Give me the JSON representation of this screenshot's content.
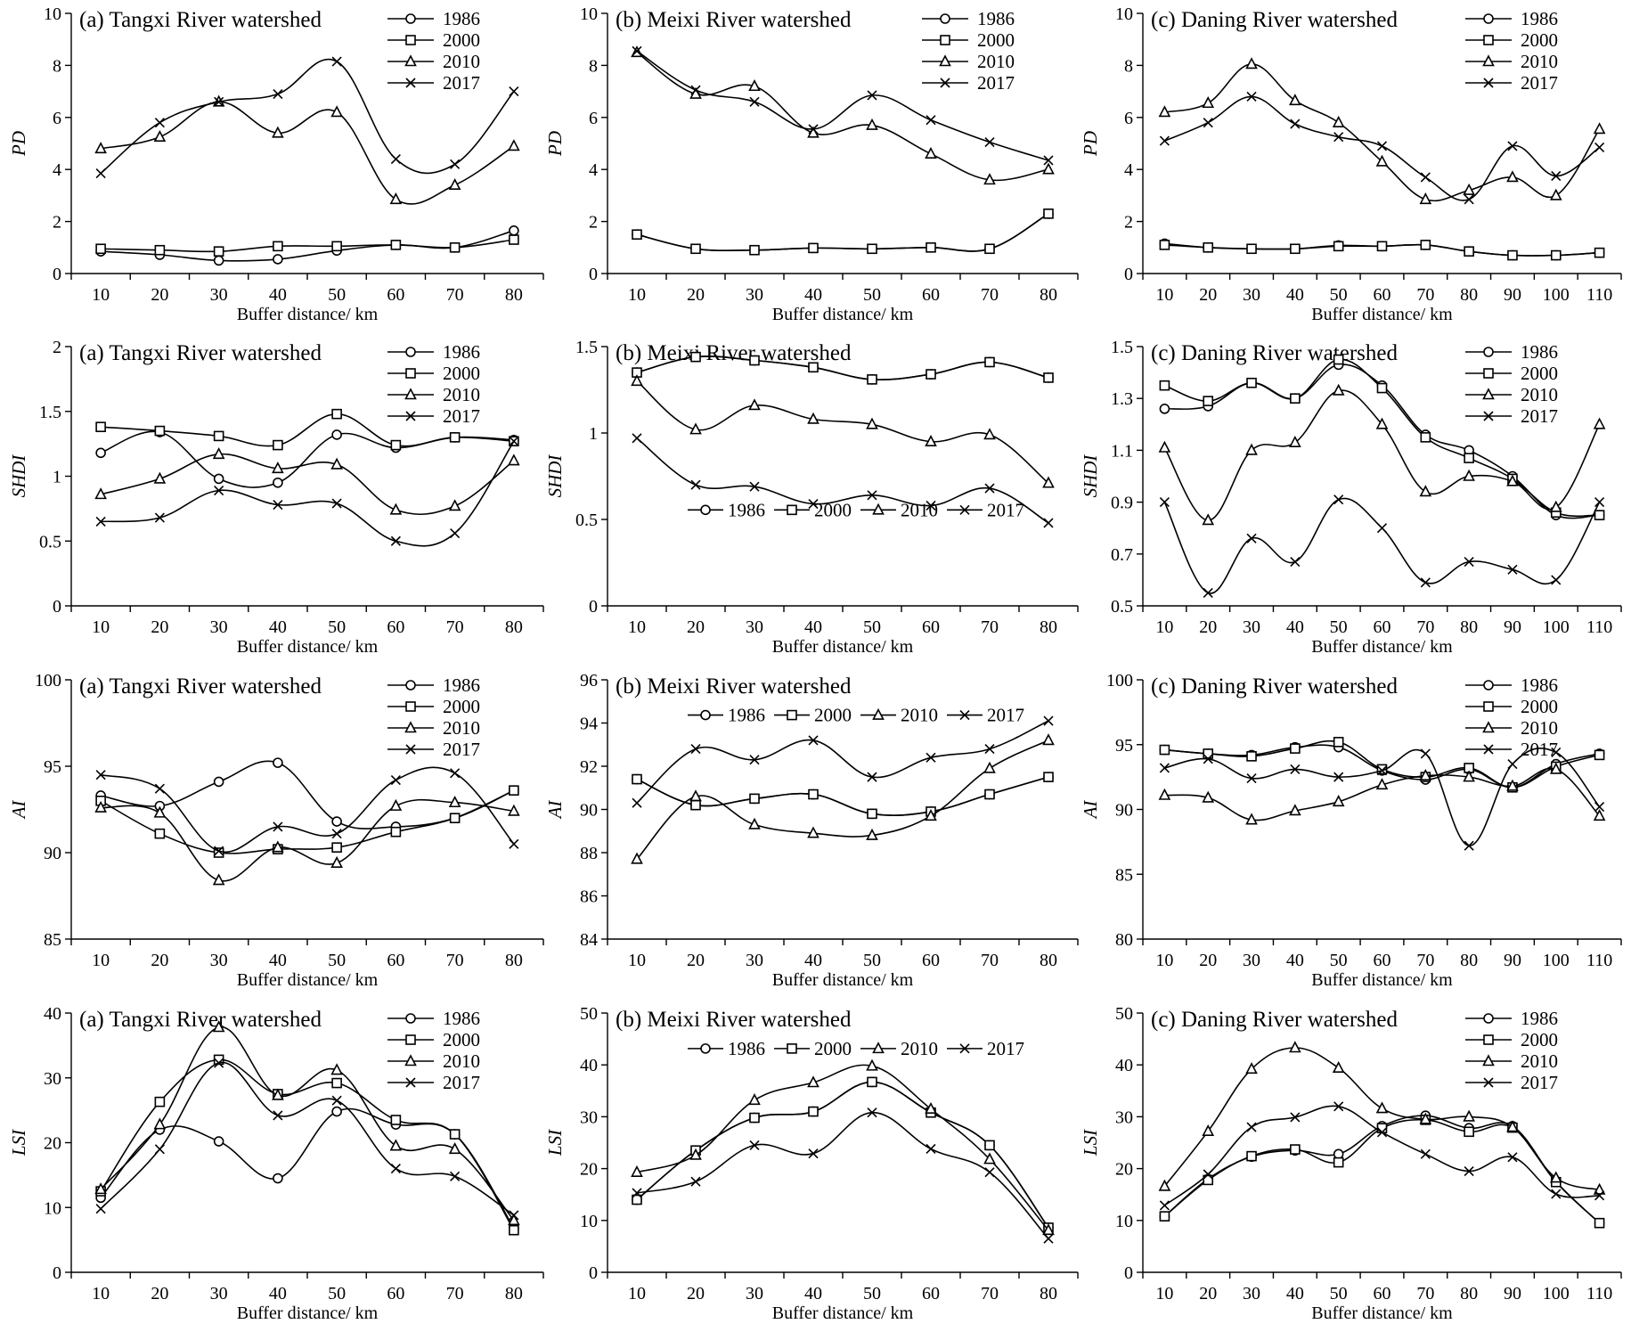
{
  "chart_data": [
    {
      "type": "line",
      "metric": "PD",
      "title": "(a) Tangxi River watershed",
      "xlabel": "Buffer distance/ km",
      "ylabel": "PD",
      "x": [
        10,
        20,
        30,
        40,
        50,
        60,
        70,
        80
      ],
      "ylim": [
        0,
        10
      ],
      "yticks": [
        0,
        2,
        4,
        6,
        8,
        10
      ],
      "legend_position": "top-right",
      "series": [
        {
          "name": "1986",
          "marker": "circle",
          "values": [
            0.85,
            0.72,
            0.5,
            0.55,
            0.88,
            1.1,
            1.0,
            1.65
          ]
        },
        {
          "name": "2000",
          "marker": "square",
          "values": [
            0.95,
            0.9,
            0.85,
            1.05,
            1.05,
            1.1,
            1.0,
            1.3
          ]
        },
        {
          "name": "2010",
          "marker": "triangle",
          "values": [
            4.8,
            5.25,
            6.6,
            5.4,
            6.2,
            2.85,
            3.4,
            4.9
          ]
        },
        {
          "name": "2017",
          "marker": "cross",
          "values": [
            3.85,
            5.8,
            6.6,
            6.9,
            8.15,
            4.4,
            4.2,
            7.0
          ]
        }
      ]
    },
    {
      "type": "line",
      "metric": "PD",
      "title": "(b) Meixi River watershed",
      "xlabel": "Buffer distance/ km",
      "ylabel": "PD",
      "x": [
        10,
        20,
        30,
        40,
        50,
        60,
        70,
        80
      ],
      "ylim": [
        0,
        10
      ],
      "yticks": [
        0,
        2,
        4,
        6,
        8,
        10
      ],
      "legend_position": "top-right",
      "series": [
        {
          "name": "1986",
          "marker": "circle",
          "values": [
            1.5,
            0.95,
            0.9,
            0.98,
            0.95,
            1.0,
            0.95,
            2.3
          ]
        },
        {
          "name": "2000",
          "marker": "square",
          "values": [
            1.5,
            0.95,
            0.9,
            0.98,
            0.95,
            1.0,
            0.95,
            2.3
          ]
        },
        {
          "name": "2010",
          "marker": "triangle",
          "values": [
            8.5,
            6.9,
            7.2,
            5.4,
            5.7,
            4.6,
            3.6,
            4.0
          ]
        },
        {
          "name": "2017",
          "marker": "cross",
          "values": [
            8.55,
            7.05,
            6.6,
            5.55,
            6.85,
            5.9,
            5.05,
            4.35
          ]
        }
      ]
    },
    {
      "type": "line",
      "metric": "PD",
      "title": "(c) Daning River watershed",
      "xlabel": "Buffer distance/ km",
      "ylabel": "PD",
      "x": [
        10,
        20,
        30,
        40,
        50,
        60,
        70,
        80,
        90,
        100,
        110
      ],
      "ylim": [
        0,
        10
      ],
      "yticks": [
        0,
        2,
        4,
        6,
        8,
        10
      ],
      "legend_position": "top-right",
      "series": [
        {
          "name": "1986",
          "marker": "circle",
          "values": [
            1.15,
            1.0,
            0.95,
            0.95,
            1.08,
            1.05,
            1.1,
            0.85,
            0.7,
            0.7,
            0.8
          ]
        },
        {
          "name": "2000",
          "marker": "square",
          "values": [
            1.1,
            1.0,
            0.95,
            0.95,
            1.05,
            1.05,
            1.1,
            0.85,
            0.7,
            0.7,
            0.8
          ]
        },
        {
          "name": "2010",
          "marker": "triangle",
          "values": [
            6.2,
            6.55,
            8.05,
            6.65,
            5.8,
            4.3,
            2.85,
            3.2,
            3.7,
            3.0,
            5.55
          ]
        },
        {
          "name": "2017",
          "marker": "cross",
          "values": [
            5.1,
            5.8,
            6.8,
            5.75,
            5.25,
            4.9,
            3.7,
            2.85,
            4.9,
            3.75,
            4.85
          ]
        }
      ]
    },
    {
      "type": "line",
      "metric": "SHDI",
      "title": "(a) Tangxi River watershed",
      "xlabel": "Buffer distance/ km",
      "ylabel": "SHDI",
      "x": [
        10,
        20,
        30,
        40,
        50,
        60,
        70,
        80
      ],
      "ylim": [
        0,
        2
      ],
      "yticks": [
        0,
        0.5,
        1,
        1.5,
        2
      ],
      "legend_position": "top-right",
      "series": [
        {
          "name": "1986",
          "marker": "circle",
          "values": [
            1.18,
            1.34,
            0.98,
            0.95,
            1.32,
            1.22,
            1.3,
            1.28
          ]
        },
        {
          "name": "2000",
          "marker": "square",
          "values": [
            1.38,
            1.35,
            1.31,
            1.24,
            1.48,
            1.24,
            1.3,
            1.27
          ]
        },
        {
          "name": "2010",
          "marker": "triangle",
          "values": [
            0.86,
            0.98,
            1.17,
            1.06,
            1.09,
            0.74,
            0.77,
            1.12
          ]
        },
        {
          "name": "2017",
          "marker": "cross",
          "values": [
            0.65,
            0.68,
            0.89,
            0.78,
            0.79,
            0.5,
            0.56,
            1.27
          ]
        }
      ]
    },
    {
      "type": "line",
      "metric": "SHDI",
      "title": "(b) Meixi River watershed",
      "xlabel": "Buffer distance/ km",
      "ylabel": "SHDI",
      "x": [
        10,
        20,
        30,
        40,
        50,
        60,
        70,
        80
      ],
      "ylim": [
        0,
        1.5
      ],
      "yticks": [
        0,
        0.5,
        1,
        1.5
      ],
      "legend_position": "center, horizontal",
      "series": [
        {
          "name": "1986",
          "marker": "circle",
          "values": [
            1.35,
            1.44,
            1.42,
            1.38,
            1.31,
            1.34,
            1.41,
            1.32
          ]
        },
        {
          "name": "2000",
          "marker": "square",
          "values": [
            1.35,
            1.44,
            1.42,
            1.38,
            1.31,
            1.34,
            1.41,
            1.32
          ]
        },
        {
          "name": "2010",
          "marker": "triangle",
          "values": [
            1.3,
            1.02,
            1.16,
            1.08,
            1.05,
            0.95,
            0.99,
            0.71
          ]
        },
        {
          "name": "2017",
          "marker": "cross",
          "values": [
            0.97,
            0.7,
            0.69,
            0.59,
            0.64,
            0.58,
            0.68,
            0.48
          ]
        }
      ]
    },
    {
      "type": "line",
      "metric": "SHDI",
      "title": "(c) Daning River watershed",
      "xlabel": "Buffer distance/ km",
      "ylabel": "SHDI",
      "x": [
        10,
        20,
        30,
        40,
        50,
        60,
        70,
        80,
        90,
        100,
        110
      ],
      "ylim": [
        0.5,
        1.5
      ],
      "yticks": [
        0.5,
        0.7,
        0.9,
        1.1,
        1.3,
        1.5
      ],
      "legend_position": "top-right",
      "series": [
        {
          "name": "1986",
          "marker": "circle",
          "values": [
            1.26,
            1.27,
            1.36,
            1.3,
            1.43,
            1.35,
            1.16,
            1.1,
            1.0,
            0.85,
            0.85
          ]
        },
        {
          "name": "2000",
          "marker": "square",
          "values": [
            1.35,
            1.29,
            1.36,
            1.3,
            1.45,
            1.34,
            1.15,
            1.07,
            0.99,
            0.86,
            0.85
          ]
        },
        {
          "name": "2010",
          "marker": "triangle",
          "values": [
            1.11,
            0.83,
            1.1,
            1.13,
            1.33,
            1.2,
            0.94,
            1.0,
            0.98,
            0.88,
            1.2
          ]
        },
        {
          "name": "2017",
          "marker": "cross",
          "values": [
            0.9,
            0.55,
            0.76,
            0.67,
            0.91,
            0.8,
            0.59,
            0.67,
            0.64,
            0.6,
            0.9
          ]
        }
      ]
    },
    {
      "type": "line",
      "metric": "AI",
      "title": "(a) Tangxi River watershed",
      "xlabel": "Buffer distance/ km",
      "ylabel": "AI",
      "x": [
        10,
        20,
        30,
        40,
        50,
        60,
        70,
        80
      ],
      "ylim": [
        85,
        100
      ],
      "yticks": [
        85,
        90,
        95,
        100
      ],
      "legend_position": "top-right",
      "series": [
        {
          "name": "1986",
          "marker": "circle",
          "values": [
            93.3,
            92.7,
            94.1,
            95.2,
            91.8,
            91.5,
            92.0,
            93.6
          ]
        },
        {
          "name": "2000",
          "marker": "square",
          "values": [
            93.0,
            91.1,
            90.0,
            90.2,
            90.3,
            91.2,
            92.0,
            93.6
          ]
        },
        {
          "name": "2010",
          "marker": "triangle",
          "values": [
            92.6,
            92.3,
            88.4,
            90.3,
            89.4,
            92.7,
            92.9,
            92.4
          ]
        },
        {
          "name": "2017",
          "marker": "cross",
          "values": [
            94.5,
            93.7,
            90.1,
            91.5,
            91.1,
            94.2,
            94.6,
            90.5
          ]
        }
      ]
    },
    {
      "type": "line",
      "metric": "AI",
      "title": "(b) Meixi River watershed",
      "xlabel": "Buffer distance/ km",
      "ylabel": "AI",
      "x": [
        10,
        20,
        30,
        40,
        50,
        60,
        70,
        80
      ],
      "ylim": [
        84,
        96
      ],
      "yticks": [
        84,
        86,
        88,
        90,
        92,
        94,
        96
      ],
      "legend_position": "top, horizontal",
      "series": [
        {
          "name": "1986",
          "marker": "circle",
          "values": [
            91.4,
            90.2,
            90.5,
            90.7,
            89.8,
            89.9,
            90.7,
            91.5
          ]
        },
        {
          "name": "2000",
          "marker": "square",
          "values": [
            91.4,
            90.2,
            90.5,
            90.7,
            89.8,
            89.9,
            90.7,
            91.5
          ]
        },
        {
          "name": "2010",
          "marker": "triangle",
          "values": [
            87.7,
            90.6,
            89.3,
            88.9,
            88.8,
            89.7,
            91.9,
            93.2
          ]
        },
        {
          "name": "2017",
          "marker": "cross",
          "values": [
            90.3,
            92.8,
            92.3,
            93.2,
            91.5,
            92.4,
            92.8,
            94.1
          ]
        }
      ]
    },
    {
      "type": "line",
      "metric": "AI",
      "title": "(c) Daning River watershed",
      "xlabel": "Buffer distance/ km",
      "ylabel": "AI",
      "x": [
        10,
        20,
        30,
        40,
        50,
        60,
        70,
        80,
        90,
        100,
        110
      ],
      "ylim": [
        80,
        100
      ],
      "yticks": [
        80,
        85,
        90,
        95,
        100
      ],
      "legend_position": "top-right",
      "series": [
        {
          "name": "1986",
          "marker": "circle",
          "values": [
            94.6,
            94.3,
            94.2,
            94.8,
            94.8,
            93.0,
            92.3,
            93.1,
            91.7,
            93.5,
            94.3
          ]
        },
        {
          "name": "2000",
          "marker": "square",
          "values": [
            94.6,
            94.3,
            94.1,
            94.7,
            95.2,
            93.1,
            92.5,
            93.2,
            91.7,
            93.3,
            94.2
          ]
        },
        {
          "name": "2010",
          "marker": "triangle",
          "values": [
            91.1,
            90.9,
            89.2,
            89.9,
            90.6,
            91.9,
            92.6,
            92.5,
            91.8,
            93.1,
            89.5
          ]
        },
        {
          "name": "2017",
          "marker": "cross",
          "values": [
            93.2,
            93.9,
            92.4,
            93.1,
            92.5,
            93.0,
            94.3,
            87.2,
            93.5,
            94.4,
            90.2
          ]
        }
      ]
    },
    {
      "type": "line",
      "metric": "LSI",
      "title": "(a) Tangxi River watershed",
      "xlabel": "Buffer distance/ km",
      "ylabel": "LSI",
      "x": [
        10,
        20,
        30,
        40,
        50,
        60,
        70,
        80
      ],
      "ylim": [
        0,
        40
      ],
      "yticks": [
        0,
        10,
        20,
        30,
        40
      ],
      "legend_position": "top-right",
      "series": [
        {
          "name": "1986",
          "marker": "circle",
          "values": [
            11.5,
            22.0,
            20.2,
            14.5,
            24.8,
            22.8,
            21.3,
            6.8
          ]
        },
        {
          "name": "2000",
          "marker": "square",
          "values": [
            12.5,
            26.3,
            32.8,
            27.5,
            29.2,
            23.5,
            21.3,
            6.5
          ]
        },
        {
          "name": "2010",
          "marker": "triangle",
          "values": [
            12.8,
            22.8,
            37.8,
            27.3,
            31.2,
            19.5,
            19.0,
            8.0
          ]
        },
        {
          "name": "2017",
          "marker": "cross",
          "values": [
            9.8,
            19.0,
            32.3,
            24.2,
            26.5,
            16.0,
            14.8,
            8.8
          ]
        }
      ]
    },
    {
      "type": "line",
      "metric": "LSI",
      "title": "(b) Meixi River watershed",
      "xlabel": "Buffer distance/ km",
      "ylabel": "LSI",
      "x": [
        10,
        20,
        30,
        40,
        50,
        60,
        70,
        80
      ],
      "ylim": [
        0,
        50
      ],
      "yticks": [
        0,
        10,
        20,
        30,
        40,
        50
      ],
      "legend_position": "top, horizontal",
      "series": [
        {
          "name": "1986",
          "marker": "circle",
          "values": [
            14.0,
            23.5,
            29.8,
            31.0,
            36.7,
            30.8,
            24.5,
            8.6
          ]
        },
        {
          "name": "2000",
          "marker": "square",
          "values": [
            14.0,
            23.5,
            29.8,
            31.0,
            36.7,
            30.8,
            24.5,
            8.6
          ]
        },
        {
          "name": "2010",
          "marker": "triangle",
          "values": [
            19.3,
            22.6,
            33.2,
            36.6,
            39.8,
            31.5,
            21.8,
            8.1
          ]
        },
        {
          "name": "2017",
          "marker": "cross",
          "values": [
            15.3,
            17.5,
            24.5,
            22.9,
            30.8,
            23.8,
            19.3,
            6.5
          ]
        }
      ]
    },
    {
      "type": "line",
      "metric": "LSI",
      "title": "(c) Daning River watershed",
      "xlabel": "Buffer distance/ km",
      "ylabel": "LSI",
      "x": [
        10,
        20,
        30,
        40,
        50,
        60,
        70,
        80,
        90,
        100,
        110
      ],
      "ylim": [
        0,
        50
      ],
      "yticks": [
        0,
        10,
        20,
        30,
        40,
        50
      ],
      "legend_position": "top-right",
      "series": [
        {
          "name": "1986",
          "marker": "circle",
          "values": [
            10.8,
            18.0,
            22.3,
            23.5,
            22.8,
            28.2,
            30.2,
            27.8,
            28.2,
            17.5,
            9.5
          ]
        },
        {
          "name": "2000",
          "marker": "square",
          "values": [
            10.8,
            17.8,
            22.4,
            23.7,
            21.2,
            27.8,
            29.4,
            27.1,
            27.9,
            17.4,
            9.5
          ]
        },
        {
          "name": "2010",
          "marker": "triangle",
          "values": [
            16.6,
            27.2,
            39.2,
            43.3,
            39.4,
            31.6,
            29.5,
            30.0,
            28.0,
            18.2,
            15.9
          ]
        },
        {
          "name": "2017",
          "marker": "cross",
          "values": [
            12.9,
            18.9,
            28.0,
            29.9,
            32.0,
            27.0,
            22.8,
            19.5,
            22.2,
            15.1,
            14.8
          ]
        }
      ]
    }
  ]
}
